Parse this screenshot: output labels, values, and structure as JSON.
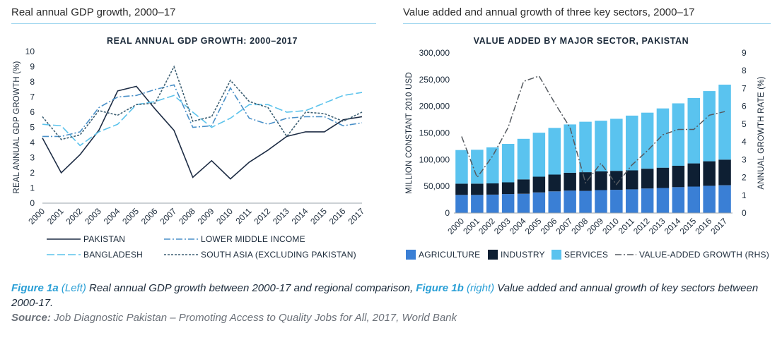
{
  "left_heading": "Real annual GDP growth, 2000–17",
  "right_heading": "Value added and annual growth of three key sectors, 2000–17",
  "caption": {
    "fig1a": "Figure 1a",
    "left_note": "(Left)",
    "text_a": " Real annual GDP growth between 2000-17 and regional comparison, ",
    "fig1b": "Figure 1b",
    "right_note": "(right)",
    "text_b": " Value added and annual growth of key sectors between 2000-17."
  },
  "source": {
    "label": "Source:",
    "text": " Job Diagnostic Pakistan – Promoting Access to Quality Jobs for All, 2017, World Bank"
  },
  "chart_data": [
    {
      "type": "line",
      "title": "REAL ANNUAL GDP GROWTH: 2000–2017",
      "ylabel": "REAL ANNUAL GDP GROWTH (%)",
      "xlabel": "",
      "ylim": [
        0,
        10
      ],
      "yticks": [
        "0",
        "1",
        "2",
        "3",
        "4",
        "5",
        "6",
        "7",
        "8",
        "9",
        "10"
      ],
      "categories": [
        "2000",
        "2001",
        "2002",
        "2003",
        "2004",
        "2005",
        "2006",
        "2007",
        "2008",
        "2009",
        "2010",
        "2011",
        "2012",
        "2013",
        "2014",
        "2015",
        "2016",
        "2017"
      ],
      "grid": false,
      "legend_position": "bottom",
      "series": [
        {
          "name": "PAKISTAN",
          "color": "#1e2d45",
          "style": "solid",
          "values": [
            4.3,
            2.0,
            3.2,
            4.8,
            7.4,
            7.7,
            6.2,
            4.8,
            1.7,
            2.8,
            1.6,
            2.7,
            3.5,
            4.4,
            4.7,
            4.7,
            5.5,
            5.7
          ]
        },
        {
          "name": "LOWER MIDDLE INCOME",
          "color": "#4a90c8",
          "style": "dashdot",
          "values": [
            4.4,
            4.4,
            4.7,
            6.3,
            7.0,
            7.1,
            7.5,
            7.8,
            5.0,
            5.1,
            7.6,
            5.6,
            5.2,
            5.6,
            5.7,
            5.7,
            5.1,
            5.3
          ]
        },
        {
          "name": "BANGLADESH",
          "color": "#5cc3ec",
          "style": "longdash",
          "values": [
            5.2,
            5.1,
            3.8,
            4.7,
            5.2,
            6.5,
            6.7,
            7.1,
            6.0,
            5.0,
            5.6,
            6.5,
            6.5,
            6.0,
            6.1,
            6.6,
            7.1,
            7.3
          ]
        },
        {
          "name": "SOUTH ASIA (EXCLUDING PAKISTAN)",
          "color": "#3d5f73",
          "style": "dotted",
          "values": [
            5.7,
            4.2,
            4.5,
            6.1,
            5.8,
            6.5,
            6.6,
            9.0,
            5.4,
            5.7,
            8.1,
            6.7,
            6.3,
            4.4,
            6.0,
            5.9,
            5.4,
            6.0
          ]
        }
      ]
    },
    {
      "type": "bar",
      "stacked": true,
      "title": "VALUE ADDED BY MAJOR SECTOR, PAKISTAN",
      "ylabel": "MILLION CONSTANT 2010 USD",
      "y2label": "ANNUAL GROWTH RATE (%)",
      "xlabel": "",
      "ylim": [
        0,
        300000
      ],
      "y2lim": [
        0,
        9
      ],
      "yticks": [
        "0",
        "50,000",
        "100,000",
        "150,000",
        "200,000",
        "250,000",
        "300,000"
      ],
      "y2ticks": [
        "0",
        "1",
        "2",
        "3",
        "4",
        "5",
        "6",
        "7",
        "8",
        "9"
      ],
      "categories": [
        "2000",
        "2001",
        "2002",
        "2003",
        "2004",
        "2005",
        "2006",
        "2007",
        "2008",
        "2009",
        "2010",
        "2011",
        "2012",
        "2013",
        "2014",
        "2015",
        "2016",
        "2017"
      ],
      "grid": false,
      "legend_position": "bottom",
      "series": [
        {
          "name": "AGRICULTURE",
          "color": "#3a7fd5",
          "values": [
            34000,
            34000,
            34500,
            35500,
            36000,
            38500,
            40500,
            42000,
            41500,
            43000,
            43500,
            44500,
            46000,
            47000,
            48500,
            49500,
            51000,
            52000
          ]
        },
        {
          "name": "INDUSTRY",
          "color": "#0e1f33",
          "values": [
            21000,
            21000,
            21000,
            22000,
            27000,
            29500,
            31500,
            33500,
            35000,
            35000,
            35500,
            35500,
            37000,
            38000,
            40000,
            43500,
            46000,
            48000
          ]
        },
        {
          "name": "SERVICES",
          "color": "#5ac3ef",
          "values": [
            63000,
            63500,
            67500,
            72000,
            76000,
            82500,
            87500,
            90500,
            94500,
            95000,
            97500,
            102500,
            105000,
            111000,
            117000,
            122500,
            131500,
            140500
          ]
        }
      ],
      "line_series": {
        "name": "VALUE-ADDED GROWTH (RHS)",
        "color": "#555a60",
        "style": "dashdot",
        "axis": "right",
        "values": [
          4.3,
          2.0,
          3.2,
          4.8,
          7.4,
          7.7,
          6.2,
          4.8,
          1.7,
          2.8,
          1.6,
          2.7,
          3.5,
          4.4,
          4.7,
          4.7,
          5.5,
          5.7
        ]
      }
    }
  ]
}
